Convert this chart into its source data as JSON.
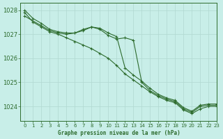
{
  "title": "Graphe pression niveau de la mer (hPa)",
  "bg_color": "#c8eee8",
  "grid_color": "#b0d8d0",
  "line_color": "#2d6b2d",
  "xlim": [
    -0.5,
    23
  ],
  "ylim": [
    1023.4,
    1028.3
  ],
  "yticks": [
    1024,
    1025,
    1026,
    1027,
    1028
  ],
  "xticks": [
    0,
    1,
    2,
    3,
    4,
    5,
    6,
    7,
    8,
    9,
    10,
    11,
    12,
    13,
    14,
    15,
    16,
    17,
    18,
    19,
    20,
    21,
    22,
    23
  ],
  "series": [
    {
      "x": [
        0,
        1,
        2,
        3,
        4,
        5,
        6,
        7,
        8,
        9,
        10,
        11,
        12,
        13,
        14,
        15,
        16,
        17,
        18,
        19,
        20,
        21,
        22,
        23
      ],
      "y": [
        1028.0,
        1027.65,
        1027.45,
        1027.2,
        1027.1,
        1027.05,
        1027.05,
        1027.15,
        1027.3,
        1027.2,
        1026.95,
        1026.8,
        1026.85,
        1026.75,
        1025.0,
        1024.65,
        1024.45,
        1024.3,
        1024.2,
        1023.9,
        1023.75,
        1024.0,
        1024.05,
        1024.05
      ]
    },
    {
      "x": [
        0,
        1,
        2,
        3,
        4,
        5,
        6,
        7,
        8,
        9,
        10,
        11,
        12,
        13,
        14,
        15,
        16,
        17,
        18,
        19,
        20,
        21,
        22,
        23
      ],
      "y": [
        1027.9,
        1027.5,
        1027.3,
        1027.1,
        1027.0,
        1026.85,
        1026.7,
        1026.55,
        1026.4,
        1026.2,
        1026.0,
        1025.7,
        1025.35,
        1025.1,
        1024.85,
        1024.6,
        1024.4,
        1024.25,
        1024.15,
        1023.85,
        1023.7,
        1023.9,
        1024.0,
        1024.0
      ]
    },
    {
      "x": [
        0,
        2,
        3,
        4,
        5,
        6,
        7,
        8,
        9,
        10,
        11,
        12,
        13,
        14,
        15,
        16,
        17,
        18,
        19,
        20,
        21,
        22,
        23
      ],
      "y": [
        1027.75,
        1027.35,
        1027.15,
        1027.05,
        1027.0,
        1027.05,
        1027.2,
        1027.3,
        1027.25,
        1027.05,
        1026.9,
        1025.6,
        1025.3,
        1025.05,
        1024.75,
        1024.5,
        1024.35,
        1024.25,
        1023.95,
        1023.8,
        1024.05,
        1024.1,
        1024.1
      ]
    }
  ]
}
